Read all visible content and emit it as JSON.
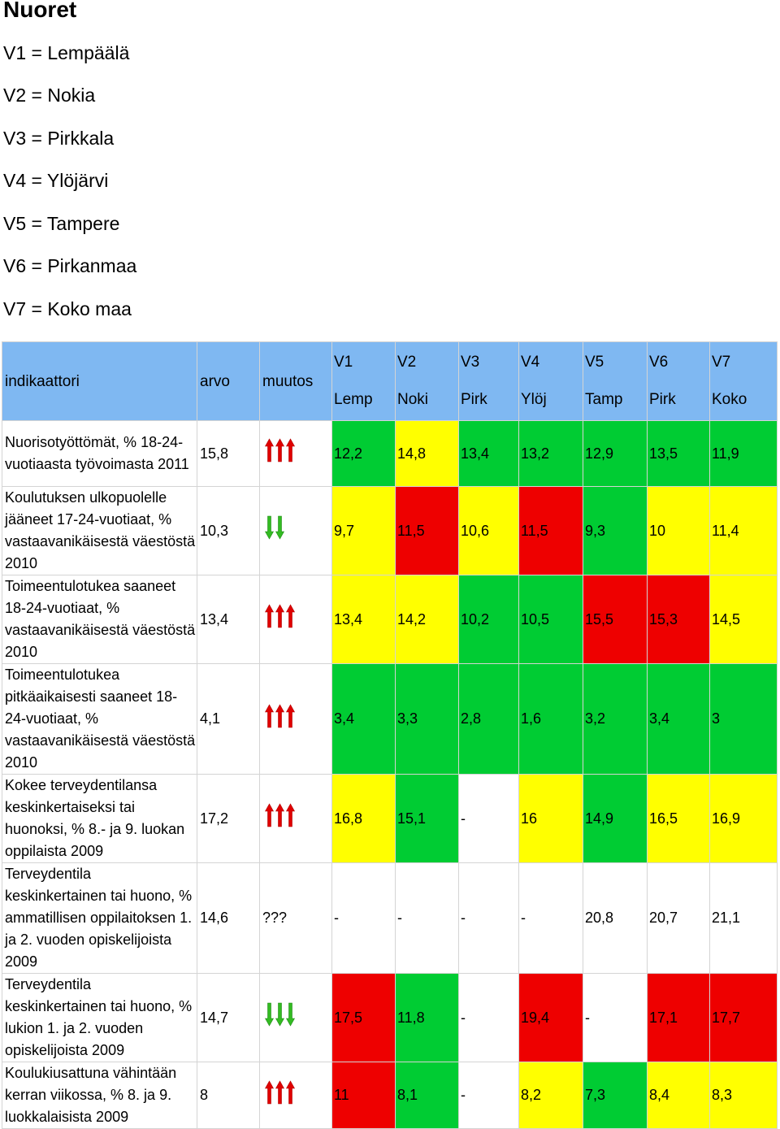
{
  "title": "Nuoret",
  "legend": [
    "V1 = Lempäälä",
    "V2 = Nokia",
    "V3 = Pirkkala",
    "V4 = Ylöjärvi",
    "V5 = Tampere",
    "V6 = Pirkanmaa",
    "V7 = Koko maa"
  ],
  "header": {
    "indikaattori": "indikaattori",
    "arvo": "arvo",
    "muutos": "muutos",
    "cols": [
      {
        "code": "V1",
        "short": "Lemp"
      },
      {
        "code": "V2",
        "short": "Noki"
      },
      {
        "code": "V3",
        "short": "Pirk"
      },
      {
        "code": "V4",
        "short": "Ylöj"
      },
      {
        "code": "V5",
        "short": "Tamp"
      },
      {
        "code": "V6",
        "short": "Pirk"
      },
      {
        "code": "V7",
        "short": "Koko"
      }
    ]
  },
  "colors": {
    "green": "#00cc33",
    "yellow": "#ffff00",
    "red": "#ee0000",
    "white": "#ffffff",
    "header": "#7fb8f2",
    "arrow_up": "#e00000",
    "arrow_down": "#33bb22"
  },
  "rows": [
    {
      "name": "Nuorisotyöttömät, % 18-24-vuotiaasta työvoimasta 2011",
      "arvo": "15,8",
      "muutos": "up3",
      "muutos_text": "",
      "values": [
        "12,2",
        "14,8",
        "13,4",
        "13,2",
        "12,9",
        "13,5",
        "11,9"
      ],
      "colors": [
        "green",
        "yellow",
        "green",
        "green",
        "green",
        "green",
        "green"
      ]
    },
    {
      "name": "Koulutuksen ulkopuolelle jääneet 17-24-vuotiaat, % vastaavanikäisestä väestöstä 2010",
      "arvo": "10,3",
      "muutos": "down2",
      "muutos_text": "",
      "values": [
        "9,7",
        "11,5",
        "10,6",
        "11,5",
        "9,3",
        "10",
        "11,4"
      ],
      "colors": [
        "yellow",
        "red",
        "yellow",
        "red",
        "green",
        "yellow",
        "yellow"
      ]
    },
    {
      "name": "Toimeentulotukea saaneet 18-24-vuotiaat, % vastaavanikäisestä väestöstä 2010",
      "arvo": "13,4",
      "muutos": "up3",
      "muutos_text": "",
      "values": [
        "13,4",
        "14,2",
        "10,2",
        "10,5",
        "15,5",
        "15,3",
        "14,5"
      ],
      "colors": [
        "yellow",
        "yellow",
        "green",
        "green",
        "red",
        "red",
        "yellow"
      ]
    },
    {
      "name": "Toimeentulotukea pitkäaikaisesti saaneet 18-24-vuotiaat, % vastaavanikäisestä väestöstä 2010",
      "arvo": "4,1",
      "muutos": "up3",
      "muutos_text": "",
      "values": [
        "3,4",
        "3,3",
        "2,8",
        "1,6",
        "3,2",
        "3,4",
        "3"
      ],
      "colors": [
        "green",
        "green",
        "green",
        "green",
        "green",
        "green",
        "green"
      ]
    },
    {
      "name": "Kokee terveydentilansa keskinkertaiseksi tai huonoksi, % 8.- ja 9. luokan oppilaista 2009",
      "arvo": "17,2",
      "muutos": "up3",
      "muutos_text": "",
      "values": [
        "16,8",
        "15,1",
        "-",
        "16",
        "14,9",
        "16,5",
        "16,9"
      ],
      "colors": [
        "yellow",
        "green",
        "white",
        "yellow",
        "green",
        "yellow",
        "yellow"
      ]
    },
    {
      "name": "Terveydentila keskinkertainen tai huono, % ammatillisen oppilaitoksen 1. ja 2. vuoden opiskelijoista 2009",
      "arvo": "14,6",
      "muutos": "none",
      "muutos_text": "???",
      "values": [
        "-",
        "-",
        "-",
        "-",
        "20,8",
        "20,7",
        "21,1"
      ],
      "colors": [
        "white",
        "white",
        "white",
        "white",
        "white",
        "white",
        "white"
      ]
    },
    {
      "name": "Terveydentila keskinkertainen tai huono, % lukion 1. ja 2. vuoden opiskelijoista 2009",
      "arvo": "14,7",
      "muutos": "down3",
      "muutos_text": "",
      "values": [
        "17,5",
        "11,8",
        "-",
        "19,4",
        "-",
        "17,1",
        "17,7"
      ],
      "colors": [
        "red",
        "green",
        "white",
        "red",
        "white",
        "red",
        "red"
      ]
    },
    {
      "name": "Koulukiusattuna vähintään kerran viikossa, % 8. ja 9. luokkalaisista 2009",
      "arvo": "8",
      "muutos": "up3",
      "muutos_text": "",
      "values": [
        "11",
        "8,1",
        "-",
        "8,2",
        "7,3",
        "8,4",
        "8,3"
      ],
      "colors": [
        "red",
        "green",
        "white",
        "yellow",
        "green",
        "yellow",
        "yellow"
      ]
    }
  ]
}
